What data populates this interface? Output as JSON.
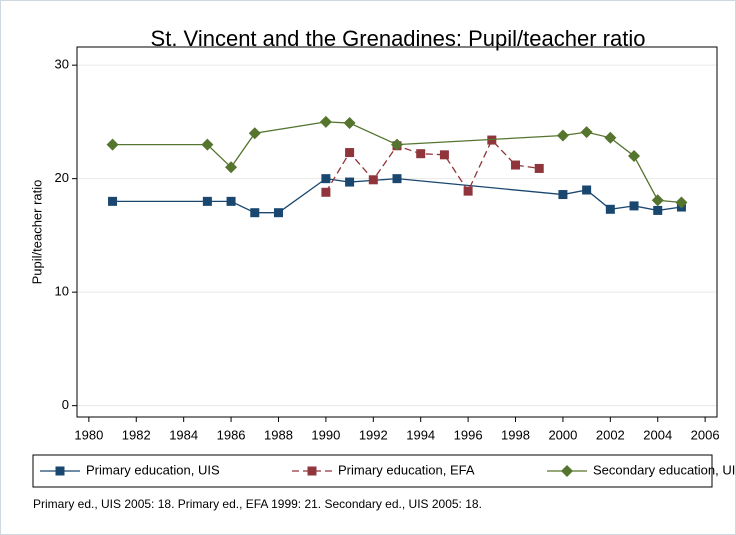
{
  "chart_data": {
    "type": "line",
    "title": "St. Vincent and the Grenadines: Pupil/teacher ratio",
    "y_label": "Pupil/teacher ratio",
    "note": "Primary ed., UIS 2005: 18. Primary ed., EFA 1999: 21. Secondary ed., UIS 2005: 18.",
    "xlim": [
      1979.5,
      2006.5
    ],
    "xticks": [
      1980,
      1982,
      1984,
      1986,
      1988,
      1990,
      1992,
      1994,
      1996,
      1998,
      2000,
      2002,
      2004,
      2006
    ],
    "ylim": [
      -1,
      31.6
    ],
    "yticks": [
      0,
      10,
      20,
      30
    ],
    "grid": true,
    "legend": "bottom",
    "series": [
      {
        "name": "Primary education, UIS",
        "color": "#1a476f",
        "marker": "square",
        "dash": false,
        "x": [
          1981,
          1985,
          1986,
          1987,
          1988,
          1990,
          1991,
          1993,
          2000,
          2001,
          2002,
          2003,
          2004,
          2005
        ],
        "values": [
          18,
          18,
          18,
          17,
          17,
          20,
          19.7,
          20,
          18.6,
          19,
          17.3,
          17.6,
          17.2,
          17.5
        ]
      },
      {
        "name": "Primary education, EFA",
        "color": "#90353b",
        "marker": "square",
        "dash": true,
        "x": [
          1990,
          1991,
          1992,
          1993,
          1994,
          1995,
          1996,
          1997,
          1998,
          1999
        ],
        "values": [
          18.8,
          22.3,
          19.9,
          22.9,
          22.2,
          22.1,
          18.9,
          23.4,
          21.2,
          20.9
        ]
      },
      {
        "name": "Secondary education, UIS",
        "color": "#55752f",
        "marker": "diamond",
        "dash": false,
        "x": [
          1981,
          1985,
          1986,
          1987,
          1990,
          1991,
          1993,
          2000,
          2001,
          2002,
          2003,
          2004,
          2005
        ],
        "values": [
          23,
          23,
          21,
          24,
          25,
          24.9,
          23,
          23.8,
          24.1,
          23.6,
          22,
          18.1,
          17.9
        ]
      }
    ]
  }
}
